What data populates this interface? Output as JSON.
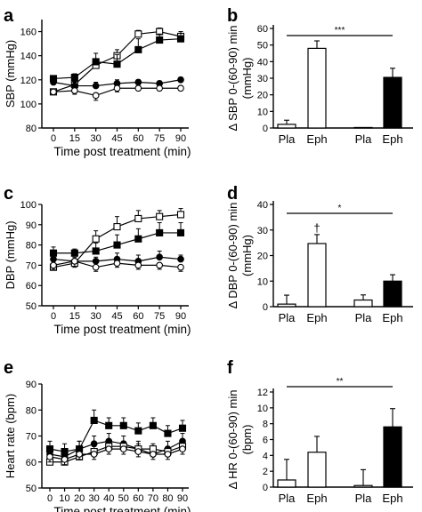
{
  "chart_data": [
    {
      "panel": "a",
      "type": "line",
      "x": [
        0,
        15,
        30,
        45,
        60,
        75,
        90
      ],
      "x_ticks": [
        "0",
        "15",
        "30",
        "45",
        "60",
        "75",
        "90"
      ],
      "xlabel": "Time post treatment (min)",
      "ylabel": "SBP (mmHg)",
      "ylim": [
        80,
        170
      ],
      "y_ticks": [
        "80",
        "100",
        "120",
        "140",
        "160"
      ],
      "series": [
        {
          "marker": "open-square",
          "values": [
            110,
            116,
            132,
            140,
            158,
            160,
            156
          ],
          "errors": [
            2,
            3,
            4,
            5,
            3,
            3,
            4
          ]
        },
        {
          "marker": "filled-square",
          "values": [
            121,
            122,
            135,
            133,
            145,
            153,
            154
          ],
          "errors": [
            2,
            3,
            7,
            8,
            9,
            5,
            6
          ]
        },
        {
          "marker": "filled-circle",
          "values": [
            118,
            115,
            115,
            117,
            118,
            117,
            120
          ],
          "errors": [
            2,
            3,
            3,
            3,
            2,
            2,
            2
          ]
        },
        {
          "marker": "open-circle",
          "values": [
            110,
            111,
            107,
            113,
            113,
            113,
            113
          ],
          "errors": [
            2,
            3,
            4,
            3,
            2,
            2,
            2
          ]
        }
      ]
    },
    {
      "panel": "b",
      "type": "bar",
      "categories": [
        "Pla",
        "Eph",
        "Pla",
        "Eph"
      ],
      "values": [
        2.2,
        48,
        0.3,
        30.5
      ],
      "errors": [
        2.5,
        4.5,
        0,
        5.5
      ],
      "fills": [
        "#ffffff",
        "#ffffff",
        "#ffffff",
        "#000000"
      ],
      "ylabel": "Δ SBP 0-(60-90) min (mmHg)",
      "ylim": [
        0,
        60
      ],
      "y_ticks": [
        "0",
        "10",
        "20",
        "30",
        "40",
        "50",
        "60"
      ],
      "significance": "***"
    },
    {
      "panel": "c",
      "type": "line",
      "x": [
        0,
        15,
        30,
        45,
        60,
        75,
        90
      ],
      "x_ticks": [
        "0",
        "15",
        "30",
        "45",
        "60",
        "75",
        "90"
      ],
      "xlabel": "Time post treatment (min)",
      "ylabel": "DBP (mmHg)",
      "ylim": [
        50,
        100
      ],
      "y_ticks": [
        "50",
        "60",
        "70",
        "80",
        "90",
        "100"
      ],
      "series": [
        {
          "marker": "open-square",
          "values": [
            69,
            71,
            83,
            89,
            93,
            94,
            95
          ],
          "errors": [
            2,
            2,
            4,
            5,
            4,
            3,
            3
          ]
        },
        {
          "marker": "filled-square",
          "values": [
            76,
            76,
            77,
            80,
            83,
            86,
            86
          ],
          "errors": [
            3,
            2,
            4,
            5,
            5,
            5,
            5
          ]
        },
        {
          "marker": "filled-circle",
          "values": [
            73,
            72,
            72,
            73,
            72,
            74,
            73
          ],
          "errors": [
            2,
            2,
            2,
            3,
            3,
            3,
            2
          ]
        },
        {
          "marker": "open-circle",
          "values": [
            70,
            72,
            69,
            71,
            70,
            70,
            69
          ],
          "errors": [
            2,
            3,
            2,
            2,
            2,
            2,
            2
          ]
        }
      ]
    },
    {
      "panel": "d",
      "type": "bar",
      "categories": [
        "Pla",
        "Eph",
        "Pla",
        "Eph"
      ],
      "values": [
        1.0,
        24.7,
        2.6,
        10.0
      ],
      "errors": [
        3.5,
        3.5,
        2.0,
        2.5
      ],
      "fills": [
        "#ffffff",
        "#ffffff",
        "#ffffff",
        "#000000"
      ],
      "ylabel": "Δ DBP 0-(60-90) min (mmHg)",
      "ylim": [
        0,
        40
      ],
      "y_ticks": [
        "0",
        "10",
        "20",
        "30",
        "40"
      ],
      "significance": "*",
      "bar_annotation": "†"
    },
    {
      "panel": "e",
      "type": "line",
      "x": [
        0,
        10,
        20,
        30,
        40,
        50,
        60,
        70,
        80,
        90
      ],
      "x_ticks": [
        "0",
        "10",
        "20",
        "30",
        "40",
        "50",
        "60",
        "70",
        "80",
        "90"
      ],
      "xlabel": "Time post treatment (min)",
      "ylabel": "Heart rate (bpm)",
      "ylim": [
        50,
        90
      ],
      "y_ticks": [
        "50",
        "60",
        "70",
        "80",
        "90"
      ],
      "series": [
        {
          "marker": "filled-square",
          "values": [
            65,
            64,
            65,
            76,
            74,
            74,
            72,
            74,
            71,
            73
          ],
          "errors": [
            3,
            3,
            3,
            4,
            3,
            3,
            3,
            3,
            3,
            3
          ]
        },
        {
          "marker": "filled-circle",
          "values": [
            63,
            62,
            65,
            67,
            68,
            67,
            65,
            63,
            65,
            68
          ],
          "errors": [
            3,
            2,
            3,
            3,
            3,
            3,
            3,
            3,
            3,
            3
          ]
        },
        {
          "marker": "open-square",
          "values": [
            60,
            60,
            62,
            64,
            66,
            66,
            65,
            65,
            64,
            66
          ],
          "errors": [
            2,
            2,
            2,
            2,
            2,
            2,
            2,
            2,
            2,
            2
          ]
        },
        {
          "marker": "open-circle",
          "values": [
            62,
            61,
            63,
            63,
            65,
            65,
            64,
            63,
            63,
            65
          ],
          "errors": [
            2,
            2,
            2,
            2,
            2,
            2,
            2,
            2,
            2,
            2
          ]
        }
      ]
    },
    {
      "panel": "f",
      "type": "bar",
      "categories": [
        "Pla",
        "Eph",
        "Pla",
        "Eph"
      ],
      "values": [
        0.9,
        4.4,
        0.2,
        7.6
      ],
      "errors": [
        2.6,
        2.0,
        2.0,
        2.3
      ],
      "fills": [
        "#ffffff",
        "#ffffff",
        "#ffffff",
        "#000000"
      ],
      "ylabel": "Δ HR 0-(60-90) min (bpm)",
      "ylim": [
        0,
        12
      ],
      "y_ticks": [
        "0",
        "2",
        "4",
        "6",
        "8",
        "10",
        "12"
      ],
      "significance": "**"
    }
  ]
}
